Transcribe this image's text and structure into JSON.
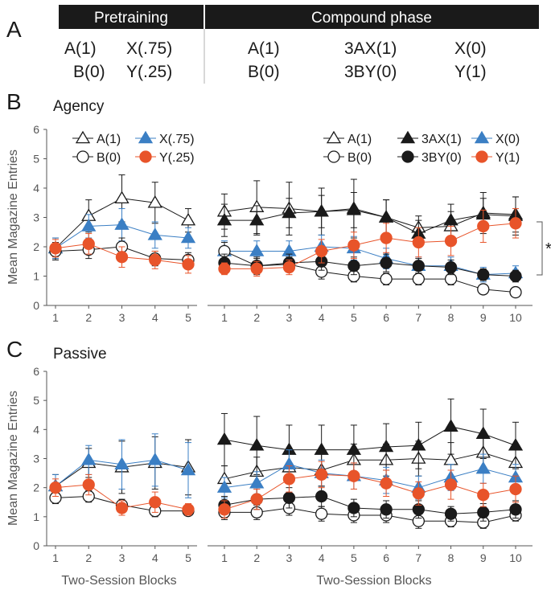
{
  "table": {
    "panel_letter": "A",
    "pretraining_header": "Pretraining",
    "compound_header": "Compound phase",
    "pretraining_rows": [
      [
        "A(1)",
        "X(.75)"
      ],
      [
        "B(0)",
        "Y(.25)"
      ]
    ],
    "compound_rows": [
      [
        "A(1)",
        "3AX(1)",
        "X(0)"
      ],
      [
        "B(0)",
        "3BY(0)",
        "Y(1)"
      ]
    ]
  },
  "colors": {
    "black": "#1a1a1a",
    "blue": "#3b7fc4",
    "orange": "#e8542a",
    "axis": "#555555",
    "header_bg": "#1a1a1a"
  },
  "chart_data": [
    {
      "type": "line",
      "panel_letter": "B",
      "title": "Agency",
      "ylabel": "Mean Magazine Entries",
      "xlabel": "",
      "ylim": [
        0,
        6
      ],
      "yticks": [
        0,
        1,
        2,
        3,
        4,
        5,
        6
      ],
      "significance_mark": "*",
      "subplots": [
        {
          "id": "pretraining",
          "x": [
            1,
            2,
            3,
            4,
            5
          ],
          "legend": [
            [
              "A(1)",
              "X(.75)"
            ],
            [
              "B(0)",
              "Y(.25)"
            ]
          ],
          "series": [
            {
              "name": "A(1)",
              "marker": "triangle-open",
              "color": "#1a1a1a",
              "values": [
                1.95,
                3.05,
                3.65,
                3.5,
                2.9
              ],
              "err": [
                0.35,
                0.55,
                0.8,
                0.7,
                0.4
              ]
            },
            {
              "name": "X(.75)",
              "marker": "triangle-filled",
              "color": "#3b7fc4",
              "values": [
                1.95,
                2.7,
                2.75,
                2.4,
                2.3
              ],
              "err": [
                0.35,
                0.4,
                0.55,
                0.45,
                0.35
              ]
            },
            {
              "name": "B(0)",
              "marker": "circle-open",
              "color": "#1a1a1a",
              "values": [
                1.85,
                1.9,
                2.0,
                1.6,
                1.55
              ],
              "err": [
                0.3,
                0.3,
                0.3,
                0.25,
                0.25
              ]
            },
            {
              "name": "Y(.25)",
              "marker": "circle-filled",
              "color": "#e8542a",
              "values": [
                1.95,
                2.1,
                1.65,
                1.55,
                1.4
              ],
              "err": [
                0.3,
                0.35,
                0.35,
                0.3,
                0.3
              ]
            }
          ]
        },
        {
          "id": "compound",
          "x": [
            1,
            2,
            3,
            4,
            5,
            6,
            7,
            8,
            9,
            10
          ],
          "legend": [
            [
              "A(1)",
              "3AX(1)",
              "X(0)"
            ],
            [
              "B(0)",
              "3BY(0)",
              "Y(1)"
            ]
          ],
          "series": [
            {
              "name": "A(1)",
              "marker": "triangle-open",
              "color": "#1a1a1a",
              "values": [
                3.2,
                3.35,
                3.3,
                3.2,
                3.3,
                3.0,
                2.65,
                2.7,
                3.15,
                3.1
              ],
              "err": [
                0.6,
                0.9,
                0.9,
                0.8,
                1.0,
                0.6,
                0.4,
                0.5,
                0.7,
                0.6
              ]
            },
            {
              "name": "3AX(1)",
              "marker": "triangle-filled",
              "color": "#1a1a1a",
              "values": [
                2.9,
                2.9,
                3.15,
                3.2,
                3.25,
                3.0,
                2.45,
                2.9,
                3.1,
                3.05
              ],
              "err": [
                0.55,
                0.5,
                0.5,
                0.55,
                0.6,
                0.6,
                0.45,
                0.55,
                0.55,
                0.65
              ]
            },
            {
              "name": "X(0)",
              "marker": "triangle-filled",
              "color": "#3b7fc4",
              "values": [
                1.85,
                1.85,
                1.85,
                2.0,
                1.95,
                1.6,
                1.35,
                1.35,
                1.05,
                1.1
              ],
              "err": [
                0.35,
                0.35,
                0.35,
                0.4,
                0.4,
                0.35,
                0.3,
                0.3,
                0.25,
                0.25
              ]
            },
            {
              "name": "B(0)",
              "marker": "circle-open",
              "color": "#1a1a1a",
              "values": [
                1.85,
                1.35,
                1.4,
                1.15,
                1.0,
                0.9,
                0.9,
                0.9,
                0.55,
                0.45
              ],
              "err": [
                0.3,
                0.25,
                0.25,
                0.25,
                0.2,
                0.2,
                0.2,
                0.2,
                0.15,
                0.1
              ]
            },
            {
              "name": "3BY(0)",
              "marker": "circle-filled",
              "color": "#1a1a1a",
              "values": [
                1.45,
                1.35,
                1.45,
                1.5,
                1.35,
                1.45,
                1.35,
                1.3,
                1.05,
                1.0
              ],
              "err": [
                0.3,
                0.3,
                0.3,
                0.3,
                0.3,
                0.3,
                0.25,
                0.25,
                0.2,
                0.2
              ]
            },
            {
              "name": "Y(1)",
              "marker": "circle-filled",
              "color": "#e8542a",
              "values": [
                1.25,
                1.25,
                1.3,
                1.85,
                2.05,
                2.3,
                2.15,
                2.2,
                2.7,
                2.8
              ],
              "err": [
                0.2,
                0.25,
                0.25,
                0.4,
                0.45,
                0.5,
                0.5,
                0.5,
                0.55,
                0.5
              ]
            }
          ]
        }
      ]
    },
    {
      "type": "line",
      "panel_letter": "C",
      "title": "Passive",
      "ylabel": "Mean Magazine Entries",
      "xlabel": "Two-Session Blocks",
      "ylim": [
        0,
        6
      ],
      "yticks": [
        0,
        1,
        2,
        3,
        4,
        5,
        6
      ],
      "subplots": [
        {
          "id": "pretraining",
          "x": [
            1,
            2,
            3,
            4,
            5
          ],
          "series": [
            {
              "name": "A(1)",
              "marker": "triangle-open",
              "color": "#1a1a1a",
              "values": [
                2.05,
                2.85,
                2.7,
                2.85,
                2.7
              ],
              "err": [
                0.4,
                0.5,
                0.9,
                0.9,
                0.95
              ]
            },
            {
              "name": "X(.75)",
              "marker": "triangle-filled",
              "color": "#3b7fc4",
              "values": [
                2.05,
                2.95,
                2.8,
                2.95,
                2.6
              ],
              "err": [
                0.4,
                0.5,
                0.85,
                0.9,
                0.95
              ]
            },
            {
              "name": "B(0)",
              "marker": "circle-open",
              "color": "#1a1a1a",
              "values": [
                1.65,
                1.7,
                1.4,
                1.2,
                1.2
              ],
              "err": [
                0.2,
                0.2,
                0.2,
                0.2,
                0.15
              ]
            },
            {
              "name": "Y(.25)",
              "marker": "circle-filled",
              "color": "#e8542a",
              "values": [
                2.0,
                2.1,
                1.3,
                1.5,
                1.25
              ],
              "err": [
                0.3,
                0.35,
                0.25,
                0.35,
                0.2
              ]
            }
          ]
        },
        {
          "id": "compound",
          "x": [
            1,
            2,
            3,
            4,
            5,
            6,
            7,
            8,
            9,
            10
          ],
          "series": [
            {
              "name": "A(1)",
              "marker": "triangle-open",
              "color": "#1a1a1a",
              "values": [
                2.3,
                2.55,
                2.7,
                2.6,
                2.95,
                2.95,
                3.0,
                2.95,
                3.2,
                2.85
              ],
              "err": [
                0.45,
                0.5,
                0.5,
                0.55,
                0.55,
                0.55,
                0.6,
                0.6,
                0.7,
                0.6
              ]
            },
            {
              "name": "3AX(1)",
              "marker": "triangle-filled",
              "color": "#1a1a1a",
              "values": [
                3.65,
                3.45,
                3.3,
                3.3,
                3.3,
                3.4,
                3.45,
                4.1,
                3.85,
                3.45
              ],
              "err": [
                0.9,
                1.0,
                0.85,
                0.85,
                0.85,
                0.8,
                0.8,
                0.95,
                0.85,
                0.8
              ]
            },
            {
              "name": "X(0)",
              "marker": "triangle-filled",
              "color": "#3b7fc4",
              "values": [
                2.0,
                2.15,
                2.8,
                2.5,
                2.4,
                2.25,
                2.0,
                2.35,
                2.65,
                2.35
              ],
              "err": [
                0.35,
                0.4,
                0.5,
                0.45,
                0.45,
                0.45,
                0.4,
                0.45,
                0.5,
                0.45
              ]
            },
            {
              "name": "B(0)",
              "marker": "circle-open",
              "color": "#1a1a1a",
              "values": [
                1.15,
                1.15,
                1.3,
                1.1,
                1.05,
                1.05,
                0.85,
                0.85,
                0.8,
                1.05
              ],
              "err": [
                0.25,
                0.25,
                0.25,
                0.25,
                0.25,
                0.25,
                0.25,
                0.2,
                0.2,
                0.2
              ]
            },
            {
              "name": "3BY(0)",
              "marker": "circle-filled",
              "color": "#1a1a1a",
              "values": [
                1.4,
                1.6,
                1.65,
                1.7,
                1.3,
                1.25,
                1.25,
                1.1,
                1.15,
                1.25
              ],
              "err": [
                0.3,
                0.35,
                0.35,
                0.35,
                0.3,
                0.3,
                0.3,
                0.25,
                0.3,
                0.3
              ]
            },
            {
              "name": "Y(1)",
              "marker": "circle-filled",
              "color": "#e8542a",
              "values": [
                1.25,
                1.6,
                2.3,
                2.45,
                2.4,
                2.15,
                1.8,
                2.1,
                1.75,
                1.95
              ],
              "err": [
                0.3,
                0.35,
                0.45,
                0.45,
                0.45,
                0.45,
                0.4,
                0.5,
                0.4,
                0.45
              ]
            }
          ]
        }
      ]
    }
  ]
}
